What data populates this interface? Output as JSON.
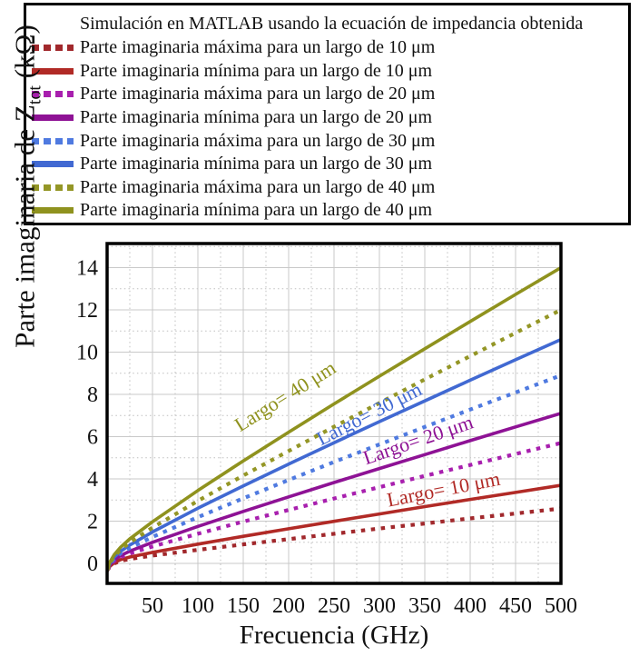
{
  "legend": {
    "title": "Simulación en MATLAB usando la ecuación de impedancia obtenida",
    "entries": [
      {
        "style": "dotted",
        "color": "#a1282c",
        "label": "Parte imaginaria máxima para un largo de 10 μm"
      },
      {
        "style": "solid",
        "color": "#b12a26",
        "label": "Parte imaginaria mínima para un largo de 10 μm"
      },
      {
        "style": "dotted",
        "color": "#a81fae",
        "label": "Parte imaginaria máxima para un largo de 20 μm"
      },
      {
        "style": "solid",
        "color": "#8e1295",
        "label": "Parte imaginaria mínima para un largo de 20 μm"
      },
      {
        "style": "dotted",
        "color": "#4f7ae0",
        "label": "Parte imaginaria máxima para un largo de 30 μm"
      },
      {
        "style": "solid",
        "color": "#4169d2",
        "label": "Parte imaginaria mínima para un largo de 30 μm"
      },
      {
        "style": "dotted",
        "color": "#949626",
        "label": "Parte imaginaria máxima para un largo de 40 μm"
      },
      {
        "style": "solid",
        "color": "#8f921e",
        "label": "Parte imaginaria mínima para un largo de 40 μm"
      }
    ]
  },
  "chart_data": {
    "type": "line",
    "title": "",
    "xlabel": "Frecuencia (GHz)",
    "ylabel": "Parte imaginaria de Ztot (kΩ)",
    "ylabel_parts": {
      "prefix": "Parte imaginaria de Z",
      "sub": "tot",
      "suffix": " (kΩ)"
    },
    "xlim": [
      0,
      500
    ],
    "ylim": [
      -1,
      15.1
    ],
    "x_ticks": [
      50,
      100,
      150,
      200,
      250,
      300,
      350,
      400,
      450,
      500
    ],
    "y_ticks": [
      0,
      2,
      4,
      6,
      8,
      10,
      12,
      14
    ],
    "grid": "major solid gray + minor dotted",
    "legend_position": "top",
    "x": [
      0,
      3,
      8,
      15,
      25,
      50,
      100,
      150,
      200,
      250,
      300,
      350,
      400,
      450,
      500
    ],
    "series": [
      {
        "name": "Parte imaginaria máxima para un largo de 10 μm",
        "style": "dotted",
        "color": "#a1282c",
        "values": [
          -0.35,
          -0.16,
          0.0,
          0.12,
          0.21,
          0.37,
          0.64,
          0.9,
          1.15,
          1.4,
          1.65,
          1.89,
          2.13,
          2.36,
          2.6
        ]
      },
      {
        "name": "Parte imaginaria mínima para un largo de 10 μm",
        "style": "solid",
        "color": "#b12a26",
        "values": [
          -0.35,
          -0.14,
          0.04,
          0.18,
          0.3,
          0.52,
          0.91,
          1.28,
          1.64,
          1.99,
          2.34,
          2.69,
          3.03,
          3.36,
          3.7
        ]
      },
      {
        "name": "Parte imaginaria máxima para un largo de 20 μm",
        "style": "dotted",
        "color": "#a81fae",
        "values": [
          -0.35,
          -0.1,
          0.12,
          0.3,
          0.47,
          0.8,
          1.4,
          1.98,
          2.53,
          3.07,
          3.61,
          4.14,
          4.66,
          5.18,
          5.7
        ]
      },
      {
        "name": "Parte imaginaria mínima para un largo de 20 μm",
        "style": "solid",
        "color": "#8e1295",
        "values": [
          -0.35,
          -0.07,
          0.17,
          0.37,
          0.58,
          1.0,
          1.75,
          2.46,
          3.15,
          3.83,
          4.49,
          5.15,
          5.81,
          6.46,
          7.1
        ]
      },
      {
        "name": "Parte imaginaria máxima para un largo de 30 μm",
        "style": "dotted",
        "color": "#4f7ae0",
        "values": [
          -0.35,
          -0.04,
          0.23,
          0.48,
          0.73,
          1.25,
          2.19,
          3.08,
          3.95,
          4.8,
          5.63,
          6.46,
          7.28,
          8.09,
          8.9
        ]
      },
      {
        "name": "Parte imaginaria mínima para un largo de 30 μm",
        "style": "solid",
        "color": "#4169d2",
        "values": [
          -0.35,
          -0.01,
          0.3,
          0.57,
          0.87,
          1.49,
          2.61,
          3.67,
          4.7,
          5.71,
          6.71,
          7.69,
          8.67,
          9.64,
          10.6
        ]
      },
      {
        "name": "Parte imaginaria máxima para un largo de 40 μm",
        "style": "dotted",
        "color": "#949626",
        "values": [
          -0.35,
          0.02,
          0.35,
          0.65,
          0.99,
          1.69,
          2.96,
          4.16,
          5.32,
          6.47,
          7.59,
          8.71,
          9.81,
          10.91,
          12.0
        ]
      },
      {
        "name": "Parte imaginaria mínima para un largo de 40 μm",
        "style": "solid",
        "color": "#8f921e",
        "values": [
          -0.35,
          0.06,
          0.42,
          0.77,
          1.16,
          1.97,
          3.45,
          4.85,
          6.21,
          7.55,
          8.86,
          10.16,
          11.45,
          12.73,
          14.0
        ]
      }
    ],
    "annotations": [
      {
        "text": "Largo= 40 μm",
        "color": "#8f921e",
        "x": 200,
        "y": 7.65,
        "rotation": -32
      },
      {
        "text": "Largo= 30 μm",
        "color": "#4169d2",
        "x": 292,
        "y": 6.8,
        "rotation": -27
      },
      {
        "text": "Largo= 20 μm",
        "color": "#8e1295",
        "x": 345,
        "y": 5.55,
        "rotation": -19
      },
      {
        "text": "Largo= 10 μm",
        "color": "#b12a26",
        "x": 372,
        "y": 3.2,
        "rotation": -11
      }
    ]
  }
}
